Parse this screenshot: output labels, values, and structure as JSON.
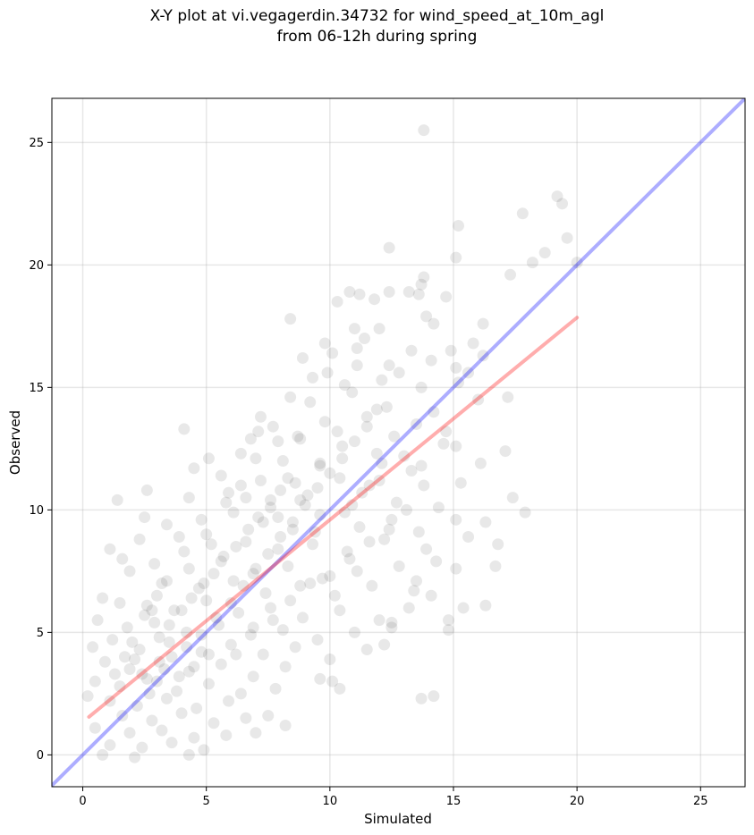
{
  "chart_data": {
    "type": "scatter",
    "title": "X-Y plot at vi.vegagerdin.34732 for wind_speed_at_10m_agl",
    "subtitle": "from 06-12h during spring",
    "xlabel": "Simulated",
    "ylabel": "Observed",
    "xlim": [
      -1.25,
      26.8
    ],
    "ylim": [
      -1.3,
      26.8
    ],
    "xticks": [
      0,
      5,
      10,
      15,
      20,
      25
    ],
    "yticks": [
      0,
      5,
      10,
      15,
      20,
      25
    ],
    "grid": true,
    "colors": {
      "points": "#000000",
      "identity_line": "#0000ff",
      "fit_line": "#ff0000"
    },
    "identity_line": {
      "x": [
        -1.25,
        26.8
      ],
      "y": [
        -1.25,
        26.8
      ]
    },
    "fit_line": {
      "x": [
        0.25,
        20.0
      ],
      "y": [
        1.55,
        17.85
      ]
    },
    "points": [
      [
        13.8,
        25.5
      ],
      [
        19.2,
        22.8
      ],
      [
        19.4,
        22.5
      ],
      [
        17.8,
        22.1
      ],
      [
        15.2,
        21.6
      ],
      [
        12.4,
        20.7
      ],
      [
        19.6,
        21.1
      ],
      [
        18.7,
        20.5
      ],
      [
        18.2,
        20.1
      ],
      [
        20.0,
        20.1
      ],
      [
        15.1,
        20.3
      ],
      [
        17.3,
        19.6
      ],
      [
        13.8,
        19.5
      ],
      [
        13.7,
        19.2
      ],
      [
        13.6,
        18.8
      ],
      [
        13.2,
        18.9
      ],
      [
        12.4,
        18.9
      ],
      [
        14.7,
        18.7
      ],
      [
        10.8,
        18.9
      ],
      [
        11.2,
        18.8
      ],
      [
        11.8,
        18.6
      ],
      [
        10.3,
        18.5
      ],
      [
        8.4,
        17.8
      ],
      [
        13.9,
        17.9
      ],
      [
        14.2,
        17.6
      ],
      [
        16.2,
        17.6
      ],
      [
        11.0,
        17.4
      ],
      [
        12.0,
        17.4
      ],
      [
        11.4,
        17.0
      ],
      [
        9.8,
        16.8
      ],
      [
        15.8,
        16.8
      ],
      [
        14.9,
        16.5
      ],
      [
        16.2,
        16.3
      ],
      [
        8.9,
        16.2
      ],
      [
        10.1,
        16.4
      ],
      [
        11.1,
        16.6
      ],
      [
        13.3,
        16.5
      ],
      [
        14.1,
        16.1
      ],
      [
        12.4,
        15.9
      ],
      [
        12.8,
        15.6
      ],
      [
        15.1,
        15.8
      ],
      [
        15.6,
        15.6
      ],
      [
        8.4,
        14.6
      ],
      [
        9.2,
        14.4
      ],
      [
        10.6,
        15.1
      ],
      [
        10.9,
        14.8
      ],
      [
        12.1,
        15.3
      ],
      [
        13.7,
        15.0
      ],
      [
        15.2,
        15.2
      ],
      [
        17.2,
        14.6
      ],
      [
        16.0,
        14.5
      ],
      [
        14.2,
        14.0
      ],
      [
        12.3,
        14.2
      ],
      [
        7.2,
        13.8
      ],
      [
        7.1,
        13.2
      ],
      [
        4.1,
        13.3
      ],
      [
        9.8,
        13.6
      ],
      [
        11.5,
        13.8
      ],
      [
        13.5,
        13.5
      ],
      [
        14.7,
        13.2
      ],
      [
        7.9,
        12.8
      ],
      [
        8.8,
        12.9
      ],
      [
        10.5,
        12.6
      ],
      [
        11.9,
        12.3
      ],
      [
        14.6,
        12.7
      ],
      [
        15.1,
        12.6
      ],
      [
        17.1,
        12.4
      ],
      [
        5.1,
        12.1
      ],
      [
        6.4,
        12.3
      ],
      [
        8.1,
        12.0
      ],
      [
        9.6,
        11.8
      ],
      [
        12.1,
        11.9
      ],
      [
        13.3,
        11.6
      ],
      [
        16.1,
        11.9
      ],
      [
        4.5,
        11.7
      ],
      [
        5.6,
        11.4
      ],
      [
        7.2,
        11.2
      ],
      [
        8.6,
        11.1
      ],
      [
        10.4,
        11.3
      ],
      [
        11.6,
        11.0
      ],
      [
        13.8,
        11.0
      ],
      [
        15.3,
        11.1
      ],
      [
        1.4,
        10.4
      ],
      [
        2.6,
        10.8
      ],
      [
        4.3,
        10.5
      ],
      [
        5.9,
        10.7
      ],
      [
        7.6,
        10.4
      ],
      [
        9.1,
        10.6
      ],
      [
        10.9,
        10.2
      ],
      [
        12.7,
        10.3
      ],
      [
        14.4,
        10.1
      ],
      [
        17.4,
        10.5
      ],
      [
        17.9,
        9.9
      ],
      [
        2.5,
        9.7
      ],
      [
        3.4,
        9.4
      ],
      [
        4.8,
        9.6
      ],
      [
        6.1,
        9.9
      ],
      [
        7.3,
        9.5
      ],
      [
        8.5,
        9.2
      ],
      [
        9.6,
        9.8
      ],
      [
        11.2,
        9.3
      ],
      [
        12.5,
        9.6
      ],
      [
        13.6,
        9.1
      ],
      [
        15.1,
        9.6
      ],
      [
        16.3,
        9.5
      ],
      [
        2.3,
        8.8
      ],
      [
        3.9,
        8.9
      ],
      [
        5.2,
        8.6
      ],
      [
        6.6,
        8.7
      ],
      [
        7.9,
        8.4
      ],
      [
        9.3,
        8.6
      ],
      [
        10.7,
        8.3
      ],
      [
        12.2,
        8.8
      ],
      [
        13.9,
        8.4
      ],
      [
        15.6,
        8.9
      ],
      [
        16.8,
        8.6
      ],
      [
        1.1,
        8.4
      ],
      [
        1.6,
        8.0
      ],
      [
        2.9,
        7.8
      ],
      [
        4.3,
        7.6
      ],
      [
        5.6,
        7.9
      ],
      [
        6.9,
        7.4
      ],
      [
        8.3,
        7.7
      ],
      [
        9.7,
        7.2
      ],
      [
        11.1,
        7.5
      ],
      [
        12.8,
        7.7
      ],
      [
        14.3,
        7.9
      ],
      [
        15.1,
        7.6
      ],
      [
        16.7,
        7.7
      ],
      [
        1.9,
        7.5
      ],
      [
        3.2,
        7.0
      ],
      [
        4.7,
        6.8
      ],
      [
        6.1,
        7.1
      ],
      [
        7.4,
        6.6
      ],
      [
        8.8,
        6.9
      ],
      [
        10.2,
        6.5
      ],
      [
        11.7,
        6.9
      ],
      [
        13.4,
        6.7
      ],
      [
        14.1,
        6.5
      ],
      [
        0.8,
        6.4
      ],
      [
        1.5,
        6.2
      ],
      [
        2.6,
        6.1
      ],
      [
        3.7,
        5.9
      ],
      [
        5.0,
        6.3
      ],
      [
        6.3,
        5.8
      ],
      [
        7.6,
        6.0
      ],
      [
        8.9,
        5.6
      ],
      [
        10.4,
        5.9
      ],
      [
        12.0,
        5.5
      ],
      [
        13.2,
        6.0
      ],
      [
        15.4,
        6.0
      ],
      [
        16.3,
        6.1
      ],
      [
        0.6,
        5.5
      ],
      [
        1.8,
        5.2
      ],
      [
        2.9,
        5.4
      ],
      [
        4.2,
        5.0
      ],
      [
        5.5,
        5.3
      ],
      [
        6.8,
        4.9
      ],
      [
        8.1,
        5.1
      ],
      [
        9.5,
        4.7
      ],
      [
        11.0,
        5.0
      ],
      [
        12.5,
        5.2
      ],
      [
        14.8,
        5.1
      ],
      [
        14.8,
        5.5
      ],
      [
        0.4,
        4.4
      ],
      [
        1.2,
        4.7
      ],
      [
        2.3,
        4.3
      ],
      [
        3.5,
        4.6
      ],
      [
        4.8,
        4.2
      ],
      [
        6.0,
        4.5
      ],
      [
        7.3,
        4.1
      ],
      [
        8.6,
        4.4
      ],
      [
        10.0,
        3.9
      ],
      [
        11.5,
        4.3
      ],
      [
        12.2,
        4.5
      ],
      [
        0.9,
        3.8
      ],
      [
        1.9,
        3.5
      ],
      [
        3.1,
        3.8
      ],
      [
        4.3,
        3.4
      ],
      [
        5.6,
        3.7
      ],
      [
        6.9,
        3.2
      ],
      [
        8.2,
        3.6
      ],
      [
        9.6,
        3.1
      ],
      [
        10.1,
        3.0
      ],
      [
        10.4,
        2.7
      ],
      [
        0.5,
        3.0
      ],
      [
        1.5,
        2.8
      ],
      [
        2.6,
        3.1
      ],
      [
        3.8,
        2.6
      ],
      [
        5.1,
        2.9
      ],
      [
        6.4,
        2.5
      ],
      [
        7.8,
        2.7
      ],
      [
        0.2,
        2.4
      ],
      [
        1.1,
        2.2
      ],
      [
        2.2,
        2.0
      ],
      [
        3.4,
        2.3
      ],
      [
        4.6,
        1.9
      ],
      [
        5.9,
        2.2
      ],
      [
        7.5,
        1.6
      ],
      [
        1.6,
        1.6
      ],
      [
        2.8,
        1.4
      ],
      [
        4.0,
        1.7
      ],
      [
        5.3,
        1.3
      ],
      [
        6.6,
        1.5
      ],
      [
        8.2,
        1.2
      ],
      [
        0.5,
        1.1
      ],
      [
        1.9,
        0.9
      ],
      [
        3.2,
        1.0
      ],
      [
        4.5,
        0.7
      ],
      [
        5.8,
        0.8
      ],
      [
        7.0,
        0.9
      ],
      [
        1.1,
        0.4
      ],
      [
        2.4,
        0.3
      ],
      [
        3.6,
        0.5
      ],
      [
        4.9,
        0.2
      ],
      [
        0.8,
        0.0
      ],
      [
        2.1,
        -0.1
      ],
      [
        4.3,
        0.0
      ],
      [
        13.7,
        2.3
      ],
      [
        14.2,
        2.4
      ],
      [
        12.5,
        5.4
      ],
      [
        13.5,
        7.1
      ],
      [
        9.9,
        15.6
      ],
      [
        9.3,
        15.4
      ],
      [
        11.1,
        15.9
      ],
      [
        8.7,
        13.0
      ],
      [
        7.7,
        13.4
      ],
      [
        6.8,
        12.9
      ],
      [
        3.0,
        3.0
      ],
      [
        3.3,
        3.5
      ],
      [
        3.6,
        4.0
      ],
      [
        3.9,
        3.2
      ],
      [
        4.2,
        4.4
      ],
      [
        4.5,
        3.6
      ],
      [
        4.8,
        4.9
      ],
      [
        5.1,
        4.1
      ],
      [
        5.4,
        5.6
      ],
      [
        2.7,
        2.5
      ],
      [
        2.4,
        3.3
      ],
      [
        2.1,
        3.9
      ],
      [
        3.1,
        4.8
      ],
      [
        3.5,
        5.3
      ],
      [
        4.0,
        5.9
      ],
      [
        4.4,
        6.4
      ],
      [
        4.9,
        7.0
      ],
      [
        5.3,
        7.4
      ],
      [
        5.7,
        8.1
      ],
      [
        6.2,
        8.5
      ],
      [
        6.7,
        9.2
      ],
      [
        7.1,
        9.7
      ],
      [
        7.6,
        10.1
      ],
      [
        8.0,
        10.8
      ],
      [
        6.0,
        6.2
      ],
      [
        6.5,
        6.9
      ],
      [
        7.0,
        7.6
      ],
      [
        7.5,
        8.2
      ],
      [
        8.0,
        8.9
      ],
      [
        8.5,
        9.5
      ],
      [
        9.0,
        10.2
      ],
      [
        9.5,
        10.9
      ],
      [
        10.0,
        11.5
      ],
      [
        10.5,
        12.1
      ],
      [
        11.0,
        12.8
      ],
      [
        11.5,
        13.4
      ],
      [
        3.0,
        6.5
      ],
      [
        2.8,
        5.9
      ],
      [
        3.4,
        7.1
      ],
      [
        4.1,
        8.3
      ],
      [
        5.0,
        9.0
      ],
      [
        5.8,
        10.3
      ],
      [
        6.4,
        11.0
      ],
      [
        7.0,
        12.1
      ],
      [
        2.0,
        4.6
      ],
      [
        1.7,
        4.0
      ],
      [
        1.3,
        3.3
      ],
      [
        2.5,
        5.7
      ],
      [
        6.2,
        4.1
      ],
      [
        6.9,
        5.2
      ],
      [
        7.7,
        5.5
      ],
      [
        8.4,
        6.3
      ],
      [
        9.2,
        7.0
      ],
      [
        10.0,
        7.3
      ],
      [
        10.8,
        8.0
      ],
      [
        11.6,
        8.7
      ],
      [
        12.4,
        9.2
      ],
      [
        13.1,
        10.0
      ],
      [
        9.6,
        11.9
      ],
      [
        10.3,
        13.2
      ],
      [
        11.9,
        14.1
      ],
      [
        12.6,
        13.0
      ],
      [
        13.0,
        12.2
      ],
      [
        13.7,
        11.8
      ],
      [
        8.8,
        10.4
      ],
      [
        9.4,
        9.1
      ],
      [
        10.6,
        9.9
      ],
      [
        11.3,
        10.7
      ],
      [
        12.0,
        11.2
      ],
      [
        7.9,
        9.7
      ],
      [
        8.3,
        11.3
      ],
      [
        6.6,
        10.5
      ]
    ]
  }
}
